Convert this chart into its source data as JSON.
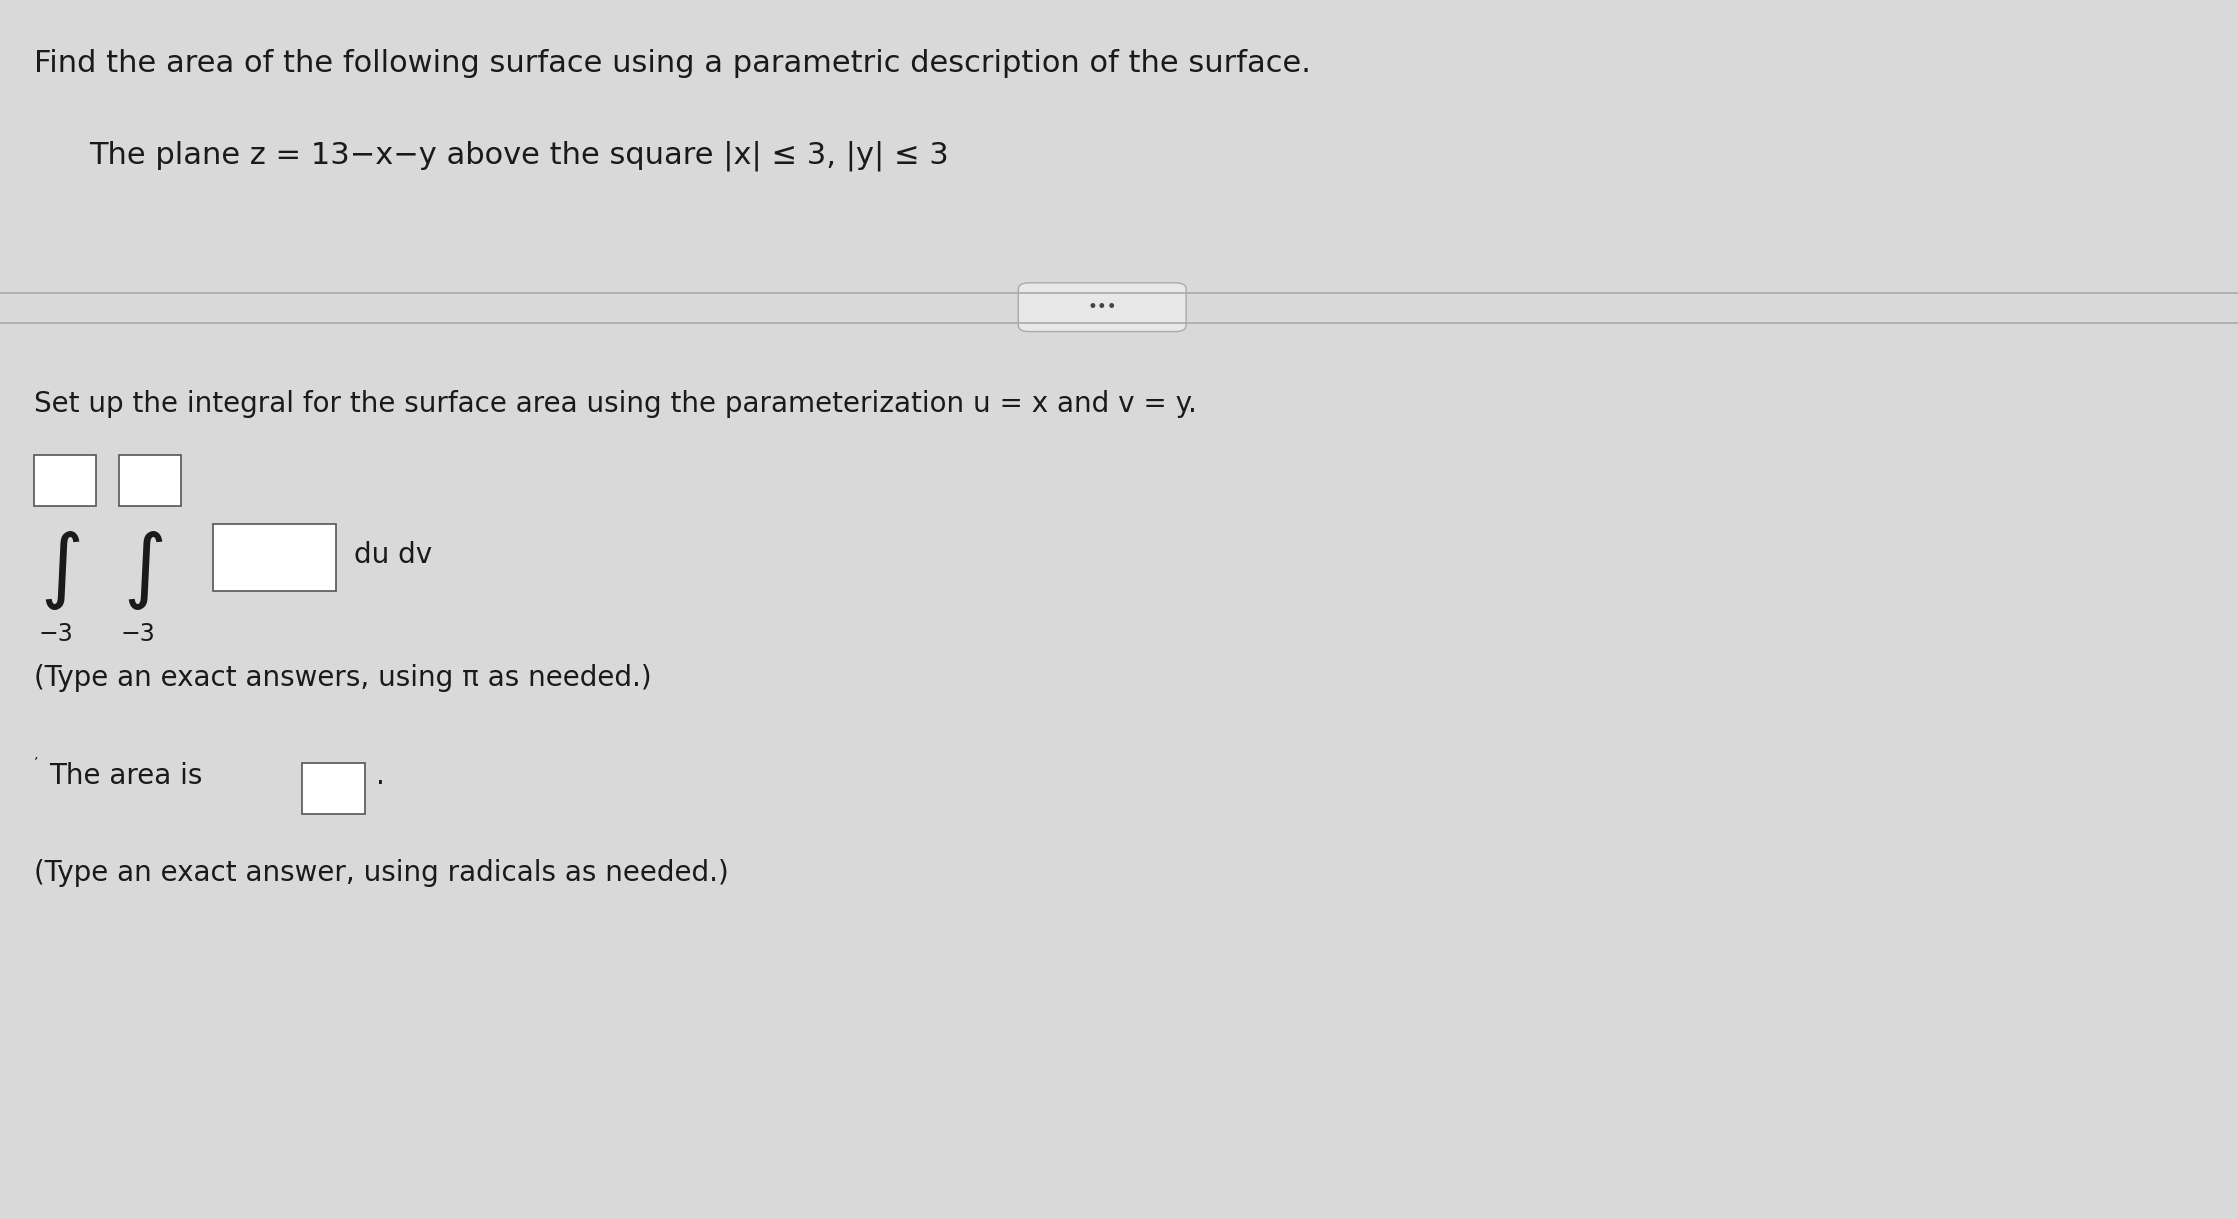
{
  "background_color": "#d9d9d9",
  "title_line": "Find the area of the following surface using a parametric description of the surface.",
  "subtitle_line": "The plane z = 13−x−y above the square |x| ≤ 3, |y| ≤ 3",
  "divider_button_text": "•••",
  "setup_line": "Set up the integral for the surface area using the parameterization u = x and v = y.",
  "integral_limits_lower": "−3 −3",
  "integral_suffix": "du dv",
  "note_line1": "(Type an exact answers, using π as needed.)",
  "area_line": "The area is",
  "note_line2": "(Type an exact answer, using radicals as needed.)",
  "font_size_title": 22,
  "font_size_subtitle": 22,
  "font_size_body": 20,
  "font_size_integral": 18,
  "text_color": "#1a1a1a",
  "box_color": "#ffffff",
  "box_edge_color": "#555555",
  "divider_color": "#aaaaaa",
  "button_bg": "#e8e8e8",
  "button_edge": "#aaaaaa"
}
